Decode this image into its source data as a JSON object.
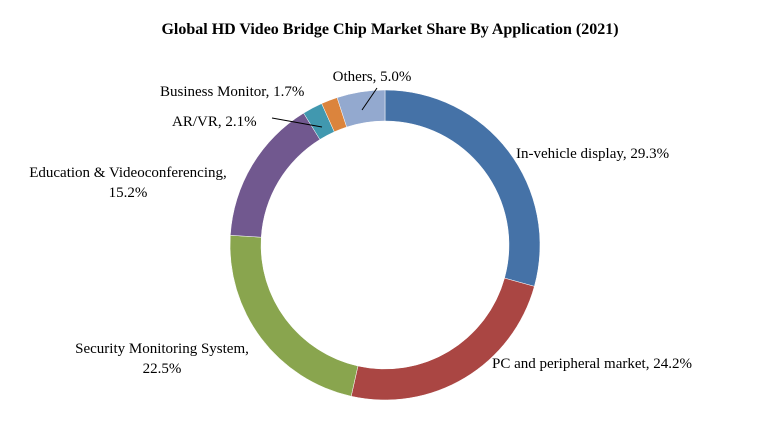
{
  "chart_data": {
    "type": "pie",
    "title": "Global HD Video Bridge Chip Market Share By Application (2021)",
    "slices": [
      {
        "name": "In-vehicle display",
        "value": 29.3,
        "color": "#4572A7",
        "label_lines": [
          "In-vehicle  display, 29.3%"
        ]
      },
      {
        "name": "PC and peripheral market",
        "value": 24.2,
        "color": "#AA4643",
        "label_lines": [
          "PC and peripheral market, 24.2%"
        ]
      },
      {
        "name": "Security Monitoring System",
        "value": 22.5,
        "color": "#89A54E",
        "label_lines": [
          "Security Monitoring System,",
          "22.5%"
        ]
      },
      {
        "name": "Education & Videoconferencing",
        "value": 15.2,
        "color": "#71588F",
        "label_lines": [
          "Education  & Videoconferencing,",
          "15.2%"
        ]
      },
      {
        "name": "AR/VR",
        "value": 2.1,
        "color": "#4198AF",
        "label_lines": [
          "AR/VR,  2.1%"
        ]
      },
      {
        "name": "Business Monitor",
        "value": 1.7,
        "color": "#DB843D",
        "label_lines": [
          "Business Monitor, 1.7%"
        ]
      },
      {
        "name": "Others",
        "value": 5.0,
        "color": "#93A9CF",
        "label_lines": [
          "Others, 5.0%"
        ]
      }
    ],
    "legend": "none"
  }
}
